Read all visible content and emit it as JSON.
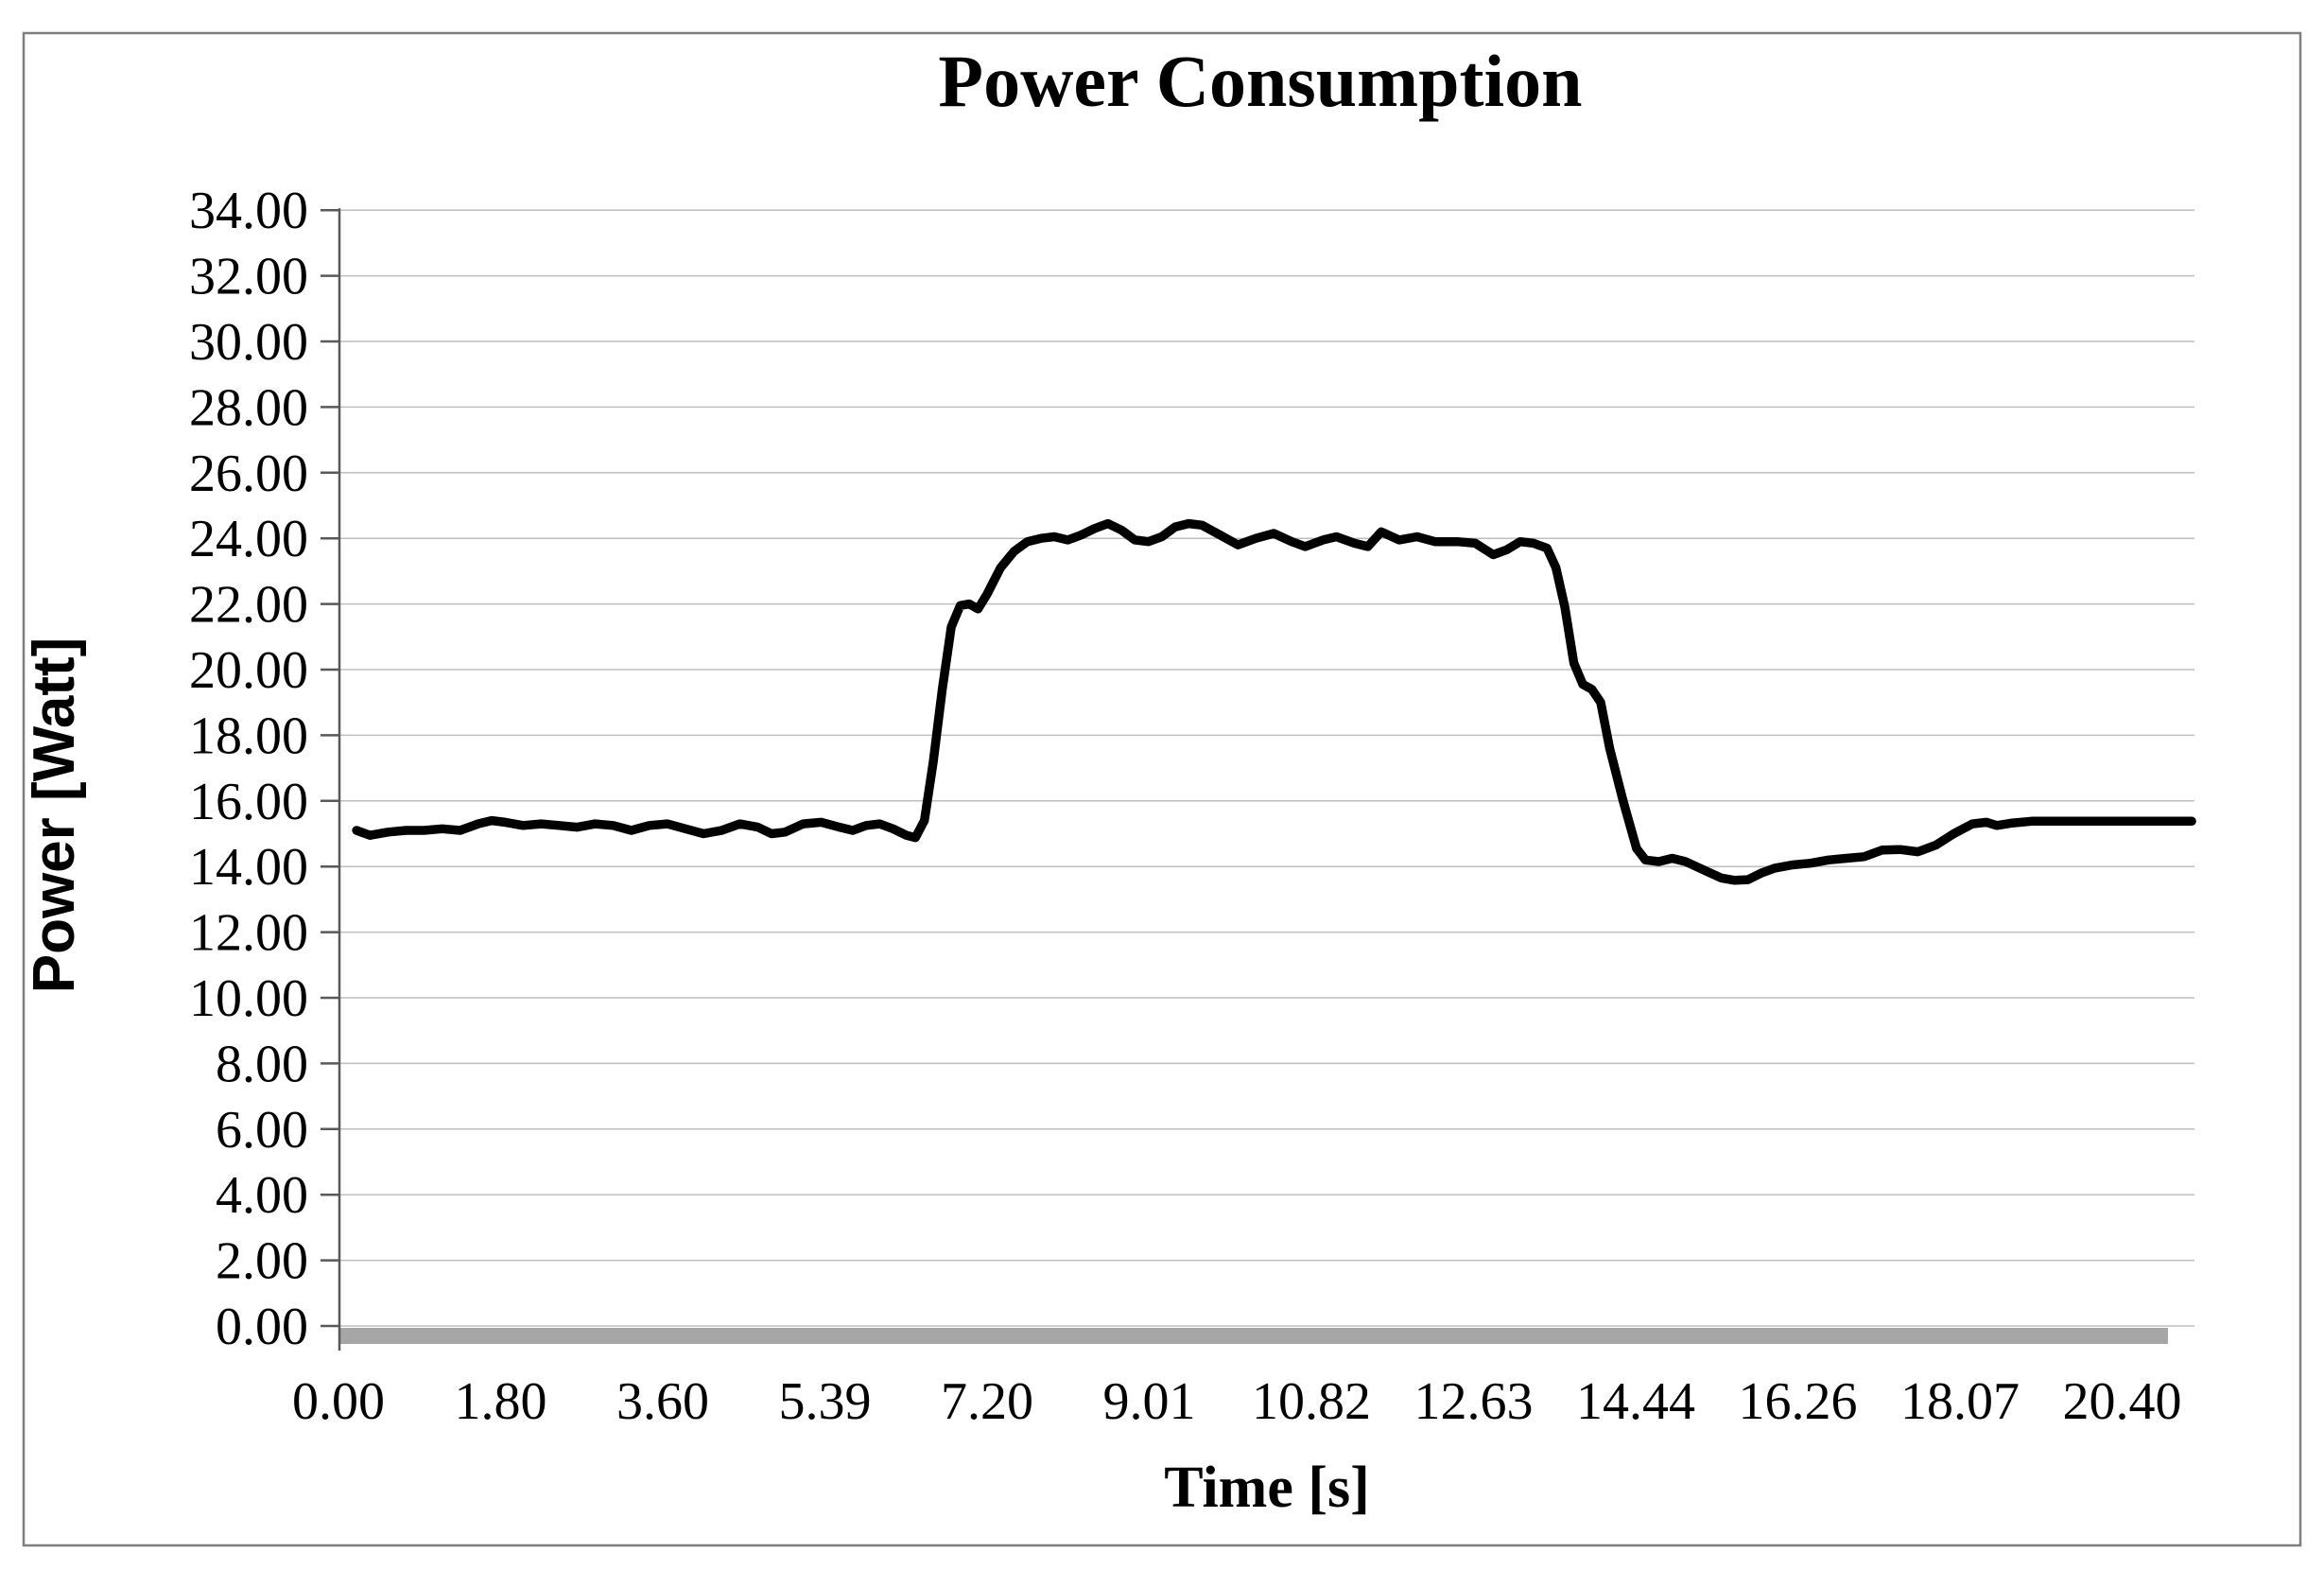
{
  "figure": {
    "background": "#FFFFFF",
    "border_color": "#7F7F7F"
  },
  "colors": {
    "gridline": "#BFBFBF",
    "axis_line": "#595959",
    "axis_baseline_bar": "#A6A6A6",
    "series_line": "#000000",
    "text": "#000000"
  },
  "chart_data": {
    "type": "line",
    "title": "Power Consumption",
    "xlabel": "Time [s]",
    "ylabel": "Power [Watt]",
    "grid": true,
    "legend": "none",
    "ylim": [
      0,
      34
    ],
    "y_step": 2,
    "y_tick_labels": [
      "0.00",
      "2.00",
      "4.00",
      "6.00",
      "8.00",
      "10.00",
      "12.00",
      "14.00",
      "16.00",
      "18.00",
      "20.00",
      "22.00",
      "24.00",
      "26.00",
      "28.00",
      "30.00",
      "32.00",
      "34.00"
    ],
    "x_tick_labels": [
      "0.00",
      "1.80",
      "3.60",
      "5.39",
      "7.20",
      "9.01",
      "10.82",
      "12.63",
      "14.44",
      "16.26",
      "18.07",
      "20.40"
    ],
    "x_tick_values": [
      0.0,
      1.8,
      3.6,
      5.39,
      7.2,
      9.01,
      10.82,
      12.63,
      14.44,
      16.26,
      18.07,
      20.4
    ],
    "series": [
      {
        "name": "Power",
        "color": "#000000",
        "points": [
          [
            0.2,
            15.1
          ],
          [
            0.35,
            14.95
          ],
          [
            0.55,
            15.05
          ],
          [
            0.75,
            15.1
          ],
          [
            0.95,
            15.1
          ],
          [
            1.15,
            15.15
          ],
          [
            1.35,
            15.1
          ],
          [
            1.55,
            15.3
          ],
          [
            1.7,
            15.4
          ],
          [
            1.85,
            15.35
          ],
          [
            2.05,
            15.25
          ],
          [
            2.25,
            15.3
          ],
          [
            2.45,
            15.25
          ],
          [
            2.65,
            15.2
          ],
          [
            2.85,
            15.3
          ],
          [
            3.05,
            15.25
          ],
          [
            3.25,
            15.1
          ],
          [
            3.45,
            15.25
          ],
          [
            3.65,
            15.3
          ],
          [
            3.85,
            15.15
          ],
          [
            4.05,
            15.0
          ],
          [
            4.25,
            15.1
          ],
          [
            4.45,
            15.3
          ],
          [
            4.65,
            15.2
          ],
          [
            4.8,
            15.0
          ],
          [
            4.95,
            15.05
          ],
          [
            5.15,
            15.3
          ],
          [
            5.35,
            15.35
          ],
          [
            5.55,
            15.2
          ],
          [
            5.7,
            15.1
          ],
          [
            5.85,
            15.25
          ],
          [
            6.0,
            15.3
          ],
          [
            6.15,
            15.15
          ],
          [
            6.3,
            14.95
          ],
          [
            6.4,
            14.88
          ],
          [
            6.5,
            15.4
          ],
          [
            6.6,
            17.2
          ],
          [
            6.7,
            19.4
          ],
          [
            6.8,
            21.3
          ],
          [
            6.9,
            21.95
          ],
          [
            7.0,
            22.0
          ],
          [
            7.1,
            21.85
          ],
          [
            7.2,
            22.3
          ],
          [
            7.35,
            23.1
          ],
          [
            7.5,
            23.6
          ],
          [
            7.65,
            23.9
          ],
          [
            7.8,
            24.0
          ],
          [
            7.95,
            24.05
          ],
          [
            8.1,
            23.95
          ],
          [
            8.25,
            24.1
          ],
          [
            8.4,
            24.3
          ],
          [
            8.55,
            24.45
          ],
          [
            8.7,
            24.25
          ],
          [
            8.85,
            23.95
          ],
          [
            9.0,
            23.9
          ],
          [
            9.15,
            24.05
          ],
          [
            9.3,
            24.35
          ],
          [
            9.45,
            24.45
          ],
          [
            9.6,
            24.4
          ],
          [
            9.8,
            24.1
          ],
          [
            10.0,
            23.8
          ],
          [
            10.2,
            24.0
          ],
          [
            10.4,
            24.15
          ],
          [
            10.6,
            23.9
          ],
          [
            10.75,
            23.75
          ],
          [
            10.95,
            23.95
          ],
          [
            11.1,
            24.05
          ],
          [
            11.3,
            23.85
          ],
          [
            11.45,
            23.75
          ],
          [
            11.6,
            24.2
          ],
          [
            11.8,
            23.95
          ],
          [
            12.0,
            24.05
          ],
          [
            12.2,
            23.9
          ],
          [
            12.45,
            23.9
          ],
          [
            12.65,
            23.85
          ],
          [
            12.85,
            23.5
          ],
          [
            13.0,
            23.65
          ],
          [
            13.15,
            23.9
          ],
          [
            13.3,
            23.85
          ],
          [
            13.45,
            23.7
          ],
          [
            13.55,
            23.1
          ],
          [
            13.65,
            21.9
          ],
          [
            13.75,
            20.2
          ],
          [
            13.85,
            19.55
          ],
          [
            13.95,
            19.4
          ],
          [
            14.05,
            19.0
          ],
          [
            14.15,
            17.6
          ],
          [
            14.3,
            16.0
          ],
          [
            14.45,
            14.55
          ],
          [
            14.55,
            14.2
          ],
          [
            14.7,
            14.15
          ],
          [
            14.85,
            14.25
          ],
          [
            15.0,
            14.15
          ],
          [
            15.2,
            13.9
          ],
          [
            15.4,
            13.65
          ],
          [
            15.55,
            13.58
          ],
          [
            15.7,
            13.6
          ],
          [
            15.85,
            13.8
          ],
          [
            16.0,
            13.95
          ],
          [
            16.2,
            14.05
          ],
          [
            16.4,
            14.1
          ],
          [
            16.6,
            14.2
          ],
          [
            16.8,
            14.25
          ],
          [
            17.0,
            14.3
          ],
          [
            17.2,
            14.5
          ],
          [
            17.4,
            14.52
          ],
          [
            17.6,
            14.45
          ],
          [
            17.8,
            14.65
          ],
          [
            18.0,
            15.0
          ],
          [
            18.25,
            15.3
          ],
          [
            18.45,
            15.35
          ],
          [
            18.6,
            15.25
          ],
          [
            18.8,
            15.32
          ],
          [
            19.1,
            15.38
          ],
          [
            19.5,
            15.38
          ],
          [
            20.0,
            15.38
          ],
          [
            20.4,
            15.38
          ],
          [
            21.0,
            15.38
          ],
          [
            21.4,
            15.38
          ]
        ]
      }
    ]
  }
}
